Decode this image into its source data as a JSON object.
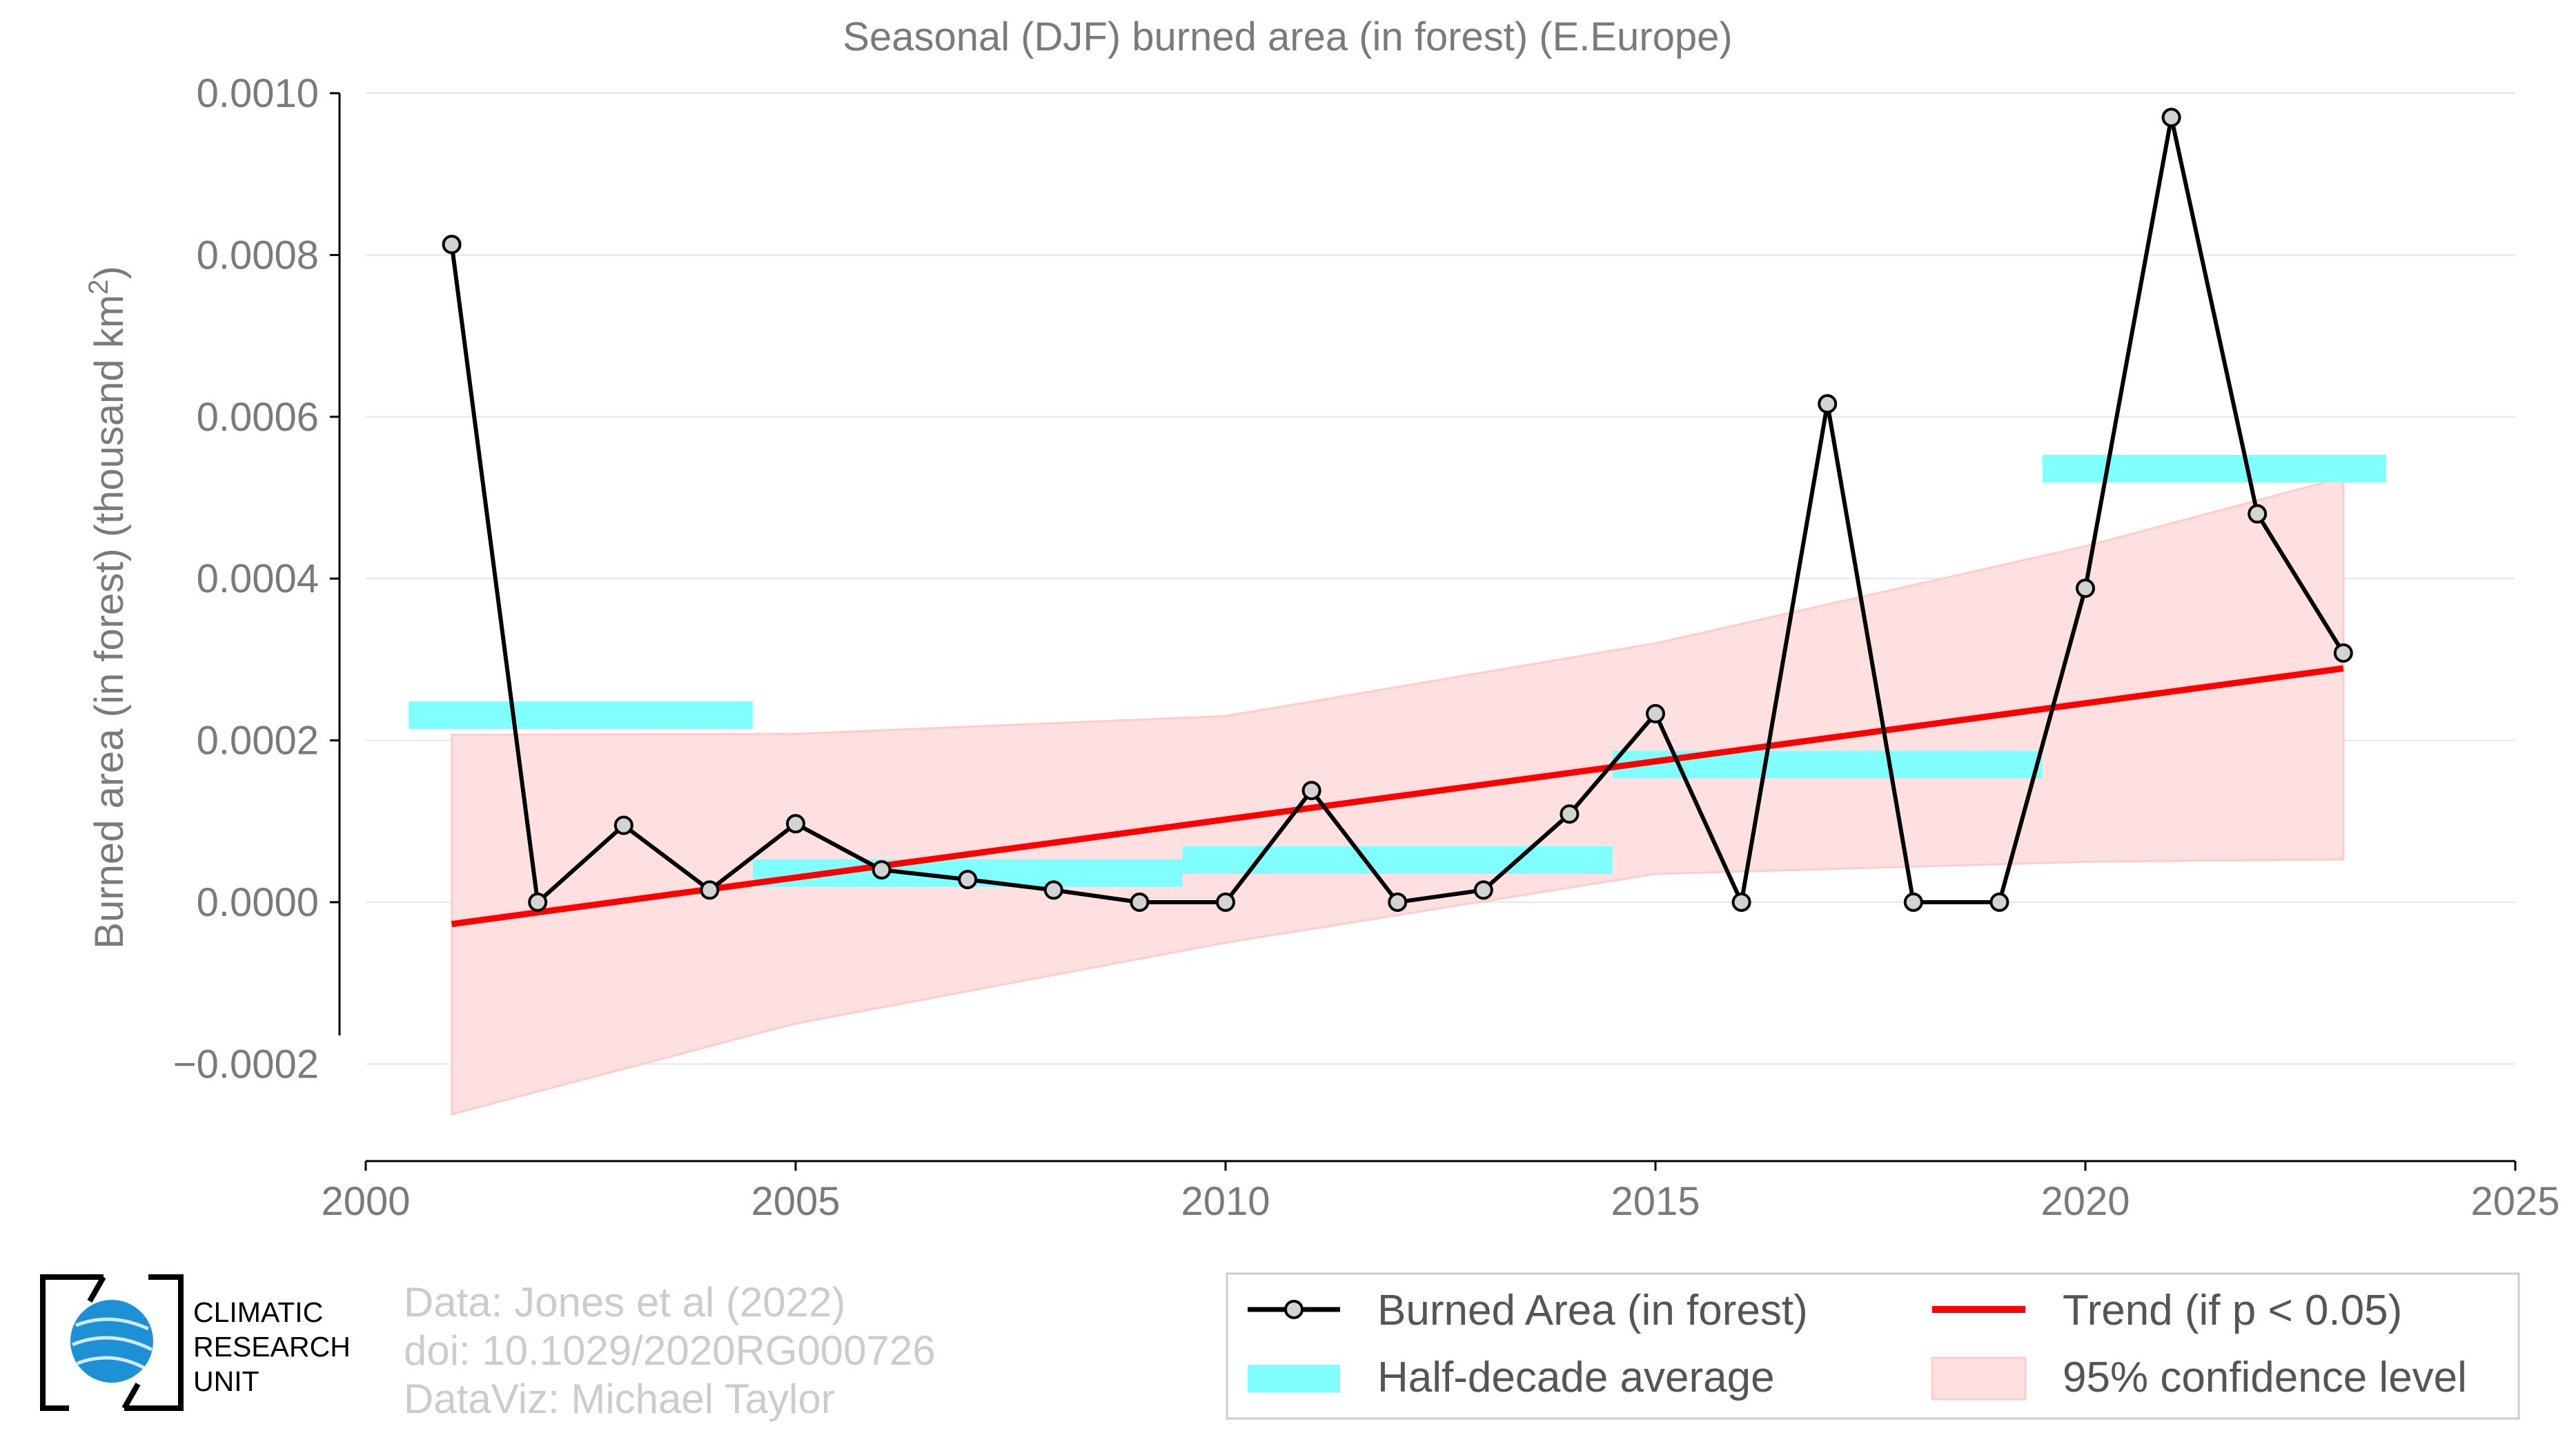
{
  "colors": {
    "line": "#000000",
    "marker_fill": "#d3d3d3",
    "trend": "#ff0000",
    "band": "#ffcccc",
    "half_decade": "#80ffff",
    "text": "#7a7a7a",
    "grid": "#e6e6e6",
    "credit": "#cccccc",
    "logo_globe": "#1e90d6"
  },
  "logo": {
    "name": "climatic-research-unit-logo",
    "lines": [
      "CLIMATIC",
      "RESEARCH",
      "UNIT"
    ]
  },
  "credits": [
    "Data: Jones et al (2022)",
    "doi: 10.1029/2020RG000726",
    "DataViz: Michael Taylor"
  ],
  "legend": {
    "items": [
      {
        "label": "Burned Area (in forest)",
        "kind": "line-marker"
      },
      {
        "label": "Trend (if p < 0.05)",
        "kind": "trend-line"
      },
      {
        "label": "Half-decade average",
        "kind": "half-decade-bar"
      },
      {
        "label": "95% confidence level",
        "kind": "confidence-band"
      }
    ]
  },
  "chart_data": {
    "type": "line",
    "title": "Seasonal (DJF) burned area (in forest) (E.Europe)",
    "xlabel": "",
    "ylabel": "Burned area (in forest) (thousand km",
    "ylabel_superscript": "2",
    "ylabel_suffix": ")",
    "xlim": [
      2000,
      2025
    ],
    "ylim": [
      -0.00032,
      0.001
    ],
    "x_ticks": [
      2000,
      2005,
      2010,
      2015,
      2020,
      2025
    ],
    "x_tick_labels": [
      "2000",
      "2005",
      "2010",
      "2015",
      "2020",
      "2025"
    ],
    "y_ticks": [
      -0.0002,
      0.0,
      0.0002,
      0.0004,
      0.0006,
      0.0008,
      0.001
    ],
    "y_tick_labels": [
      "−0.0002",
      "0.0000",
      "0.0002",
      "0.0004",
      "0.0006",
      "0.0008",
      "0.0010"
    ],
    "grid": "horizontal",
    "legend_position": "bottom-right",
    "series": [
      {
        "name": "Burned Area (in forest)",
        "x": [
          2001,
          2002,
          2003,
          2004,
          2005,
          2006,
          2007,
          2008,
          2009,
          2010,
          2011,
          2012,
          2013,
          2014,
          2015,
          2016,
          2017,
          2018,
          2019,
          2020,
          2021,
          2022,
          2023
        ],
        "y": [
          0.000813,
          0.0,
          9.5e-05,
          1.5e-05,
          9.7e-05,
          4e-05,
          2.8e-05,
          1.5e-05,
          0.0,
          0.0,
          0.000138,
          0.0,
          1.5e-05,
          0.000109,
          0.000233,
          0.0,
          0.000616,
          0.0,
          0.0,
          0.000388,
          0.00097,
          0.00048,
          0.000308
        ]
      }
    ],
    "trend": {
      "name": "Trend (if p < 0.05)",
      "x": [
        2001,
        2023
      ],
      "y": [
        -2.7e-05,
        0.000289
      ]
    },
    "confidence_band": {
      "name": "95% confidence level",
      "x": [
        2001,
        2005,
        2010,
        2015,
        2020,
        2023
      ],
      "upper": [
        0.000207,
        0.000208,
        0.00023,
        0.00032,
        0.00044,
        0.000525
      ],
      "lower": [
        -0.000262,
        -0.00015,
        -5e-05,
        3.5e-05,
        5e-05,
        5.3e-05
      ]
    },
    "half_decade_averages": {
      "name": "Half-decade average",
      "segments": [
        {
          "x_start": 2000.5,
          "x_end": 2004.5,
          "value": 0.000231
        },
        {
          "x_start": 2004.5,
          "x_end": 2009.5,
          "value": 3.6e-05
        },
        {
          "x_start": 2009.5,
          "x_end": 2014.5,
          "value": 5.2e-05
        },
        {
          "x_start": 2014.5,
          "x_end": 2019.5,
          "value": 0.00017
        },
        {
          "x_start": 2019.5,
          "x_end": 2023.5,
          "value": 0.000536
        }
      ]
    }
  }
}
